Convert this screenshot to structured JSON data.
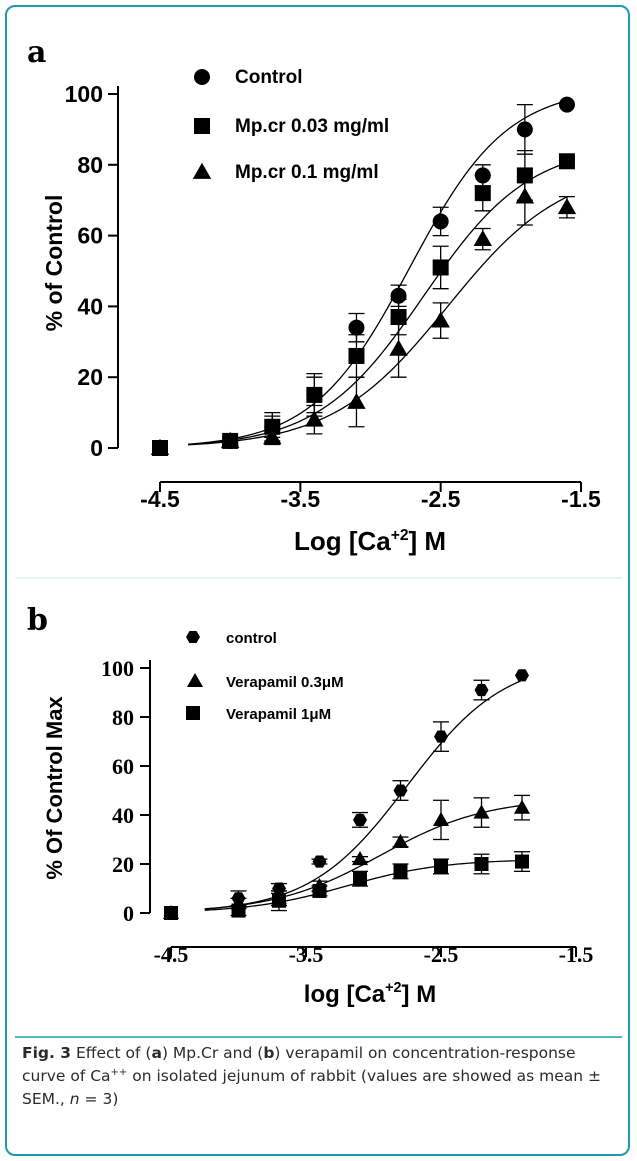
{
  "colors": {
    "frame": "#1a9bb0",
    "ink": "#000000",
    "caption_rule": "#1a9bb0"
  },
  "chart_data": [
    {
      "panel": "a",
      "type": "scatter",
      "xlabel_main": "Log [Ca",
      "xlabel_sup": "+2",
      "xlabel_end": "] M",
      "ylabel": "% of  Control",
      "xlim": [
        -4.5,
        -1.5
      ],
      "ylim": [
        0,
        100
      ],
      "xticks": [
        "-4.5",
        "-3.5",
        "-2.5",
        "-1.5"
      ],
      "yticks": [
        "0",
        "20",
        "40",
        "60",
        "80",
        "100"
      ],
      "legend_position": "top-left",
      "series": [
        {
          "name": "Control",
          "marker": "circle",
          "x": [
            -4.5,
            -4.0,
            -3.7,
            -3.4,
            -3.1,
            -2.8,
            -2.5,
            -2.2,
            -1.9,
            -1.6
          ],
          "y": [
            0,
            2,
            6,
            15,
            34,
            43,
            64,
            77,
            90,
            97
          ],
          "err": [
            0,
            1,
            3,
            5,
            4,
            3,
            4,
            3,
            7,
            0
          ],
          "fit": {
            "top": 102,
            "logec50": -2.72,
            "hill": 1.25
          }
        },
        {
          "name": "Mp.cr 0.03 mg/ml",
          "marker": "square",
          "x": [
            -4.5,
            -4.0,
            -3.7,
            -3.4,
            -3.1,
            -2.8,
            -2.5,
            -2.2,
            -1.9,
            -1.6
          ],
          "y": [
            0,
            2,
            6,
            15,
            26,
            37,
            51,
            72,
            77,
            81
          ],
          "err": [
            0,
            1,
            4,
            6,
            6,
            5,
            6,
            5,
            7,
            0
          ],
          "fit": {
            "top": 86,
            "logec50": -2.62,
            "hill": 1.15
          }
        },
        {
          "name": "Mp.cr 0.1 mg/ml",
          "marker": "triangle",
          "x": [
            -4.5,
            -4.0,
            -3.7,
            -3.4,
            -3.1,
            -2.8,
            -2.5,
            -2.2,
            -1.9,
            -1.6
          ],
          "y": [
            0,
            2,
            3,
            8,
            13,
            28,
            36,
            59,
            71,
            68
          ],
          "err": [
            0,
            1,
            2,
            4,
            7,
            8,
            5,
            3,
            8,
            3
          ],
          "fit": {
            "top": 80,
            "logec50": -2.45,
            "hill": 1.05
          }
        }
      ]
    },
    {
      "panel": "b",
      "type": "scatter",
      "xlabel_main": "log [Ca",
      "xlabel_sup": "+2",
      "xlabel_end": "] M",
      "ylabel": "% Of Control Max",
      "xlim": [
        -4.5,
        -1.5
      ],
      "ylim": [
        0,
        100
      ],
      "xticks": [
        "-4.5",
        "-3.5",
        "-2.5",
        "-1.5"
      ],
      "yticks": [
        "0",
        "20",
        "40",
        "60",
        "80",
        "100"
      ],
      "legend_position": "top-left",
      "series": [
        {
          "name": "control",
          "marker": "hexagon",
          "x": [
            -4.5,
            -4.0,
            -3.7,
            -3.4,
            -3.1,
            -2.8,
            -2.5,
            -2.2,
            -1.9
          ],
          "y": [
            0,
            6,
            10,
            21,
            38,
            50,
            72,
            91,
            97
          ],
          "err": [
            0,
            3,
            2,
            1,
            3,
            4,
            6,
            4,
            0
          ],
          "fit": {
            "top": 104,
            "logec50": -2.75,
            "hill": 1.2
          }
        },
        {
          "name": "Verapamil 0.3μM",
          "marker": "triangle",
          "x": [
            -4.5,
            -4.0,
            -3.7,
            -3.4,
            -3.1,
            -2.8,
            -2.5,
            -2.2,
            -1.9
          ],
          "y": [
            0,
            4,
            6,
            11,
            22,
            29,
            38,
            41,
            43
          ],
          "err": [
            0,
            2,
            3,
            2,
            1,
            2,
            8,
            6,
            5
          ],
          "fit": {
            "top": 47,
            "logec50": -2.95,
            "hill": 1.1
          }
        },
        {
          "name": "Verapamil 1μM",
          "marker": "square",
          "x": [
            -4.5,
            -4.0,
            -3.7,
            -3.4,
            -3.1,
            -2.8,
            -2.5,
            -2.2,
            -1.9
          ],
          "y": [
            0,
            1,
            5,
            9,
            14,
            17,
            19,
            20,
            21
          ],
          "err": [
            0,
            2,
            4,
            2,
            3,
            3,
            3,
            4,
            4
          ],
          "fit": {
            "top": 22,
            "logec50": -3.2,
            "hill": 1.2
          }
        }
      ]
    }
  ],
  "caption": {
    "label": "Fig. 3",
    "p1": " Effect of (",
    "a": "a",
    "p2": ") Mp.Cr and (",
    "b": "b",
    "p3": ") verapamil on concentration-response curve of Ca",
    "sup": "++",
    "p4": " on isolated jejunum of rabbit (values are showed as mean ± SEM., ",
    "n": "n",
    "p5": " = 3)"
  }
}
